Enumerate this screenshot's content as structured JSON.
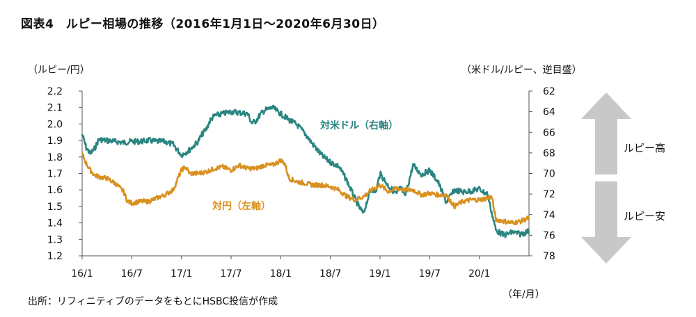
{
  "title": "図表4　ルピー相場の推移（2016年1月1日～2020年6月30日）",
  "units": {
    "left": "（ルピー/円）",
    "right": "（米ドル/ルピー、逆目盛）",
    "x": "（年/月）"
  },
  "source": "出所：リフィニティブのデータをもとにHSBC投信が作成",
  "arrows": {
    "up_label": "ルピー高",
    "down_label": "ルピー安",
    "color": "#c8c8c8"
  },
  "chart_data": {
    "type": "line",
    "title": "ルピー相場の推移（2016年1月1日～2020年6月30日）",
    "x_ticks": [
      "16/1",
      "16/7",
      "17/1",
      "17/7",
      "18/1",
      "18/7",
      "19/1",
      "19/7",
      "20/1"
    ],
    "x_ticks_t": [
      0,
      6,
      12,
      18,
      24,
      30,
      36,
      42,
      48
    ],
    "x_range": [
      0,
      54
    ],
    "y_left": {
      "label": "（ルピー/円）",
      "range": [
        1.2,
        2.2
      ],
      "ticks": [
        "2.2",
        "2.1",
        "2.0",
        "1.9",
        "1.8",
        "1.7",
        "1.6",
        "1.5",
        "1.4",
        "1.3",
        "1.2"
      ]
    },
    "y_right": {
      "label": "（米ドル/ルピー、逆目盛）",
      "range": [
        62,
        78
      ],
      "inverted": true,
      "ticks": [
        "62",
        "64",
        "66",
        "68",
        "70",
        "72",
        "74",
        "76",
        "78"
      ]
    },
    "grid": false,
    "series": [
      {
        "name": "対米ドル（右軸）",
        "axis": "right",
        "color": "#2a8580",
        "x": [
          0,
          0.5,
          1,
          1.5,
          2,
          3,
          4,
          5,
          6,
          7,
          8,
          9,
          10,
          11,
          12,
          13,
          14,
          14.5,
          15,
          15.5,
          16,
          17,
          18,
          19,
          20,
          20.5,
          21,
          21.5,
          22,
          23,
          24,
          25,
          26,
          27,
          28,
          29,
          30,
          31,
          32,
          33,
          33.5,
          34,
          34.5,
          35,
          35.5,
          36,
          37,
          38,
          38.5,
          39,
          40,
          41,
          42,
          43,
          44,
          45,
          46,
          47,
          48,
          48.5,
          49,
          49.5,
          50,
          51,
          52,
          53,
          54
        ],
        "values": [
          66.2,
          67.5,
          68.1,
          67.6,
          66.7,
          66.8,
          66.9,
          67.0,
          66.9,
          66.9,
          66.8,
          66.9,
          66.9,
          67.2,
          68.2,
          67.7,
          66.9,
          66.2,
          65.7,
          64.8,
          64.4,
          64.2,
          64.0,
          64.1,
          64.2,
          65.1,
          64.9,
          64.3,
          63.9,
          63.6,
          64.2,
          64.8,
          65.3,
          66.2,
          67.3,
          68.3,
          68.9,
          69.3,
          70.7,
          72.5,
          73.3,
          73.9,
          72.5,
          71.5,
          71.8,
          70.0,
          71.2,
          72.0,
          71.3,
          72.3,
          69.2,
          70.1,
          69.7,
          70.8,
          72.8,
          71.6,
          71.8,
          71.7,
          71.5,
          71.8,
          72.0,
          73.8,
          75.5,
          76.0,
          75.7,
          75.9,
          75.6
        ]
      },
      {
        "name": "対円（左軸）",
        "axis": "left",
        "color": "#d9901e",
        "x": [
          0,
          0.5,
          1,
          1.5,
          2,
          3,
          4,
          5,
          5.5,
          6,
          7,
          8,
          9,
          10,
          11,
          12,
          12.5,
          13,
          14,
          15,
          16,
          17,
          18,
          19,
          20,
          21,
          22,
          23,
          24,
          24.5,
          25,
          26,
          27,
          28,
          29,
          30,
          31,
          32,
          33,
          34,
          35,
          36,
          37,
          38,
          39,
          40,
          41,
          42,
          43,
          44,
          45,
          46,
          47,
          48,
          49,
          49.5,
          50,
          51,
          52,
          53,
          54
        ],
        "values": [
          1.82,
          1.76,
          1.72,
          1.69,
          1.68,
          1.67,
          1.64,
          1.59,
          1.53,
          1.52,
          1.53,
          1.53,
          1.55,
          1.57,
          1.6,
          1.72,
          1.74,
          1.7,
          1.7,
          1.71,
          1.73,
          1.74,
          1.72,
          1.75,
          1.73,
          1.73,
          1.75,
          1.75,
          1.78,
          1.76,
          1.67,
          1.65,
          1.64,
          1.63,
          1.63,
          1.62,
          1.6,
          1.56,
          1.54,
          1.56,
          1.6,
          1.63,
          1.59,
          1.61,
          1.6,
          1.6,
          1.57,
          1.58,
          1.57,
          1.57,
          1.5,
          1.53,
          1.54,
          1.54,
          1.55,
          1.56,
          1.42,
          1.41,
          1.4,
          1.41,
          1.43
        ]
      }
    ]
  }
}
